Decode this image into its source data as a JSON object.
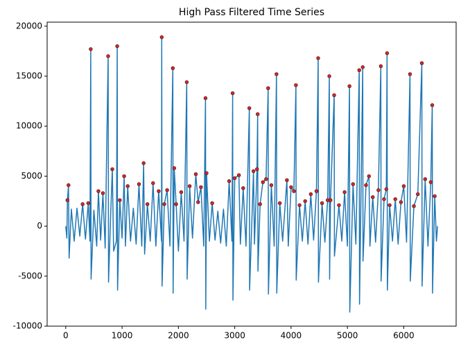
{
  "chart_data": {
    "type": "line",
    "title": "High Pass Filtered Time Series",
    "xlim": [
      -330,
      6930
    ],
    "ylim": [
      -10000,
      20400
    ],
    "xticks": [
      0,
      1000,
      2000,
      3000,
      4000,
      5000,
      6000
    ],
    "yticks": [
      -10000,
      -5000,
      0,
      5000,
      10000,
      15000,
      20000
    ],
    "grid": false,
    "series": [
      {
        "type": "line",
        "color": "#1f77b4",
        "x": [
          0,
          20,
          30,
          49,
          60,
          100,
          150,
          200,
          250,
          300,
          350,
          400,
          430,
          444,
          450,
          500,
          550,
          580,
          620,
          660,
          700,
          753,
          760,
          800,
          827,
          850,
          900,
          914,
          920,
          960,
          1000,
          1037,
          1060,
          1100,
          1150,
          1200,
          1250,
          1300,
          1350,
          1383,
          1400,
          1450,
          1500,
          1550,
          1600,
          1650,
          1700,
          1704,
          1710,
          1750,
          1800,
          1850,
          1901,
          1906,
          1926,
          1960,
          2000,
          2050,
          2100,
          2148,
          2155,
          2200,
          2250,
          2309,
          2350,
          2400,
          2450,
          2481,
          2486,
          2500,
          2550,
          2600,
          2650,
          2700,
          2750,
          2800,
          2850,
          2901,
          2950,
          2963,
          2968,
          3000,
          3074,
          3100,
          3150,
          3200,
          3259,
          3264,
          3333,
          3350,
          3395,
          3407,
          3412,
          3450,
          3500,
          3556,
          3593,
          3598,
          3650,
          3700,
          3741,
          3746,
          3800,
          3850,
          3926,
          3950,
          4000,
          4050,
          4086,
          4091,
          4150,
          4200,
          4250,
          4300,
          4350,
          4400,
          4450,
          4481,
          4486,
          4550,
          4600,
          4650,
          4679,
          4684,
          4700,
          4765,
          4770,
          4850,
          4900,
          4950,
          5000,
          5037,
          5042,
          5100,
          5150,
          5210,
          5215,
          5272,
          5277,
          5330,
          5383,
          5400,
          5450,
          5500,
          5550,
          5593,
          5598,
          5650,
          5691,
          5704,
          5709,
          5750,
          5800,
          5850,
          5900,
          5950,
          6000,
          6050,
          6111,
          6116,
          6180,
          6250,
          6321,
          6326,
          6380,
          6430,
          6480,
          6506,
          6511,
          6550,
          6580,
          6600
        ],
        "values": [
          0,
          -1200,
          2600,
          4100,
          -3200,
          1700,
          -1500,
          1800,
          -1000,
          2200,
          -1300,
          2300,
          -1500,
          17700,
          -5300,
          1600,
          -2000,
          3500,
          -1400,
          3300,
          -2200,
          17000,
          -5600,
          1500,
          5700,
          -2500,
          -1500,
          18000,
          -6400,
          2600,
          -1200,
          5000,
          -2000,
          4000,
          -1500,
          1800,
          -1800,
          4200,
          -2000,
          6300,
          -2800,
          2200,
          -1500,
          4300,
          -2000,
          3500,
          -1500,
          18900,
          -6000,
          2200,
          3600,
          -2000,
          15800,
          -6700,
          5800,
          2200,
          -2500,
          3400,
          -1500,
          14400,
          -5300,
          4000,
          -1200,
          5200,
          2400,
          3900,
          -2000,
          12800,
          -8300,
          5300,
          -1500,
          2300,
          -1400,
          1500,
          -1700,
          1700,
          -2000,
          4500,
          -1500,
          13300,
          -7400,
          4800,
          5100,
          -1800,
          3800,
          -2000,
          11800,
          -6400,
          5500,
          -1800,
          5700,
          11200,
          -4500,
          2200,
          4400,
          4700,
          13800,
          -6800,
          4100,
          -2000,
          15200,
          -6700,
          2300,
          -1500,
          4600,
          -2000,
          3900,
          3500,
          14100,
          -5400,
          2100,
          -1500,
          2500,
          -1800,
          3200,
          -1400,
          3500,
          16800,
          -5600,
          2300,
          -1600,
          2600,
          15000,
          -5300,
          2600,
          13100,
          -3000,
          2100,
          -1500,
          3400,
          -2000,
          14000,
          -8600,
          4200,
          -1800,
          15600,
          -7800,
          15900,
          -3500,
          4100,
          5000,
          -2000,
          2900,
          -1600,
          3600,
          16000,
          -5500,
          2700,
          3700,
          17300,
          -6400,
          2100,
          -1500,
          2700,
          -1800,
          2400,
          4000,
          -1600,
          15200,
          -5500,
          2000,
          3200,
          16300,
          -6000,
          4700,
          -2000,
          4400,
          12100,
          -6700,
          3000,
          -1500,
          0
        ]
      },
      {
        "type": "scatter",
        "color": "#d62728",
        "x": [
          30,
          49,
          300,
          400,
          444,
          580,
          660,
          753,
          827,
          914,
          960,
          1037,
          1100,
          1300,
          1383,
          1450,
          1550,
          1650,
          1704,
          1750,
          1800,
          1901,
          1926,
          1960,
          2050,
          2148,
          2200,
          2309,
          2350,
          2400,
          2481,
          2500,
          2600,
          2901,
          2963,
          3000,
          3074,
          3150,
          3259,
          3333,
          3395,
          3407,
          3450,
          3500,
          3556,
          3593,
          3650,
          3741,
          3800,
          3926,
          4000,
          4050,
          4086,
          4150,
          4250,
          4350,
          4450,
          4481,
          4550,
          4650,
          4679,
          4700,
          4765,
          4850,
          4950,
          5037,
          5100,
          5210,
          5272,
          5330,
          5383,
          5450,
          5550,
          5593,
          5650,
          5691,
          5704,
          5750,
          5850,
          5950,
          6000,
          6111,
          6180,
          6250,
          6321,
          6380,
          6480,
          6506,
          6550
        ],
        "values": [
          2600,
          4100,
          2200,
          2300,
          17700,
          3500,
          3300,
          17000,
          5700,
          18000,
          2600,
          5000,
          4000,
          4200,
          6300,
          2200,
          4300,
          3500,
          18900,
          2200,
          3600,
          15800,
          5800,
          2200,
          3400,
          14400,
          4000,
          5200,
          2400,
          3900,
          12800,
          5300,
          2300,
          4500,
          13300,
          4800,
          5100,
          3800,
          11800,
          5500,
          5700,
          11200,
          2200,
          4400,
          4700,
          13800,
          4100,
          15200,
          2300,
          4600,
          3900,
          3500,
          14100,
          2100,
          2500,
          3200,
          3500,
          16800,
          2300,
          2600,
          15000,
          2600,
          13100,
          2100,
          3400,
          14000,
          4200,
          15600,
          15900,
          4100,
          5000,
          2900,
          3600,
          16000,
          2700,
          3700,
          17300,
          2100,
          2700,
          2400,
          4000,
          15200,
          2000,
          3200,
          16300,
          4700,
          4400,
          12100,
          3000
        ]
      }
    ]
  }
}
